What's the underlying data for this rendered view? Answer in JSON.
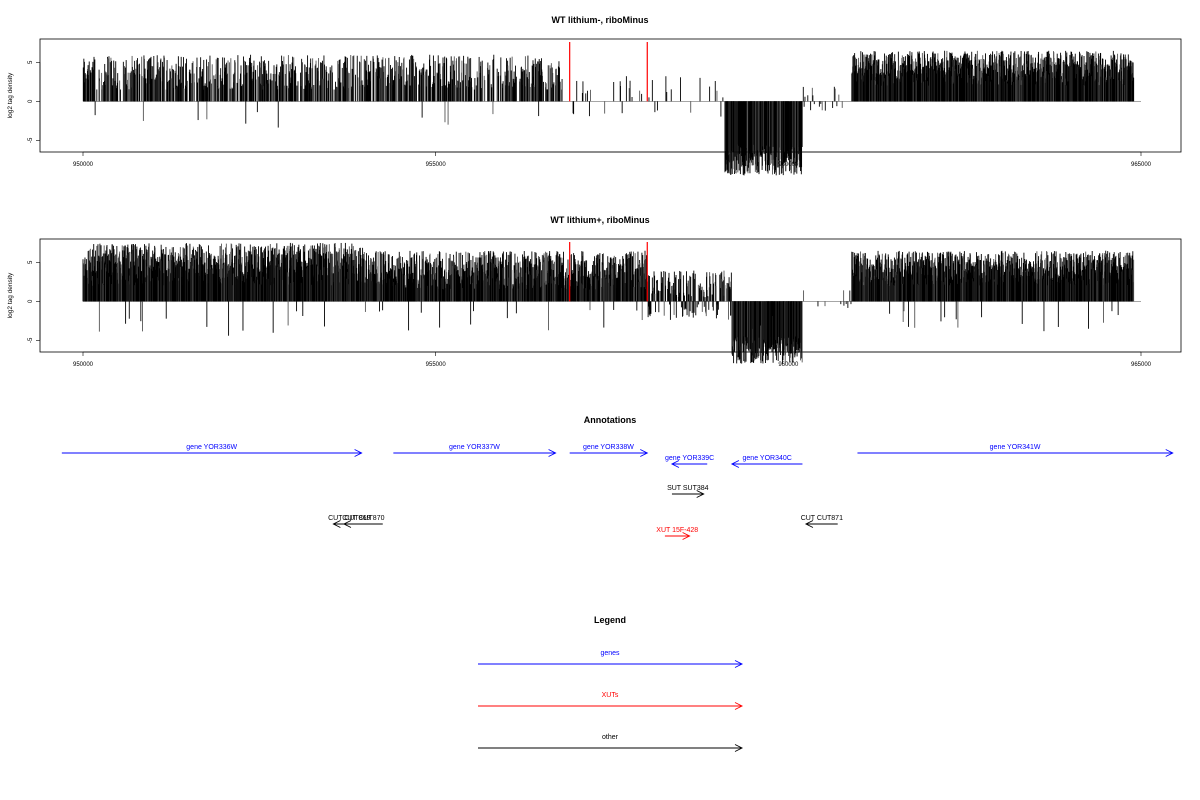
{
  "chart_data": [
    {
      "type": "bar",
      "title": "WT lithium-, riboMinus",
      "ylabel": "log2 tag density",
      "xlim": [
        950000,
        965000
      ],
      "ylim": [
        -6.5,
        8
      ],
      "x_ticks": [
        "950000",
        "955000",
        "960000",
        "965000"
      ],
      "y_ticks": [
        "-5",
        "0",
        "5"
      ],
      "grid": false,
      "markers": [
        {
          "x": 956900,
          "color": "#ff0000"
        },
        {
          "x": 958000,
          "color": "#ff0000"
        }
      ],
      "regions": [
        {
          "from": 950000,
          "to": 956800,
          "min": 1.5,
          "max": 6.0,
          "density": 0.45,
          "neg": 0.02
        },
        {
          "from": 956900,
          "to": 959100,
          "min": 0.5,
          "max": 3.5,
          "density": 0.05,
          "neg": 0.3
        },
        {
          "from": 959100,
          "to": 960200,
          "min": -5.5,
          "max": -1.5,
          "density": 0.9,
          "neg": 1.0
        },
        {
          "from": 960200,
          "to": 960800,
          "min": 0.5,
          "max": 2.0,
          "density": 0.05,
          "neg": 0.5
        },
        {
          "from": 960900,
          "to": 964900,
          "min": 2.0,
          "max": 6.5,
          "density": 1.0,
          "neg": 0.0
        }
      ]
    },
    {
      "type": "bar",
      "title": "WT lithium+, riboMinus",
      "ylabel": "log2 tag density",
      "xlim": [
        950000,
        965000
      ],
      "ylim": [
        -6.5,
        8
      ],
      "x_ticks": [
        "950000",
        "955000",
        "960000",
        "965000"
      ],
      "y_ticks": [
        "-5",
        "0",
        "5"
      ],
      "grid": false,
      "markers": [
        {
          "x": 956900,
          "color": "#ff0000"
        },
        {
          "x": 958000,
          "color": "#ff0000"
        }
      ],
      "regions": [
        {
          "from": 950000,
          "to": 954000,
          "min": 2.0,
          "max": 7.5,
          "density": 1.0,
          "neg": 0.01
        },
        {
          "from": 954000,
          "to": 958000,
          "min": 1.5,
          "max": 6.5,
          "density": 0.85,
          "neg": 0.02
        },
        {
          "from": 958000,
          "to": 959200,
          "min": 0.5,
          "max": 4.0,
          "density": 0.5,
          "neg": 0.35
        },
        {
          "from": 959200,
          "to": 960200,
          "min": -4.5,
          "max": -1.0,
          "density": 0.9,
          "neg": 0.95
        },
        {
          "from": 960200,
          "to": 960900,
          "min": 0.5,
          "max": 1.5,
          "density": 0.05,
          "neg": 0.5
        },
        {
          "from": 960900,
          "to": 964900,
          "min": 2.0,
          "max": 6.5,
          "density": 1.0,
          "neg": 0.01
        }
      ]
    }
  ],
  "annotations": {
    "title": "Annotations",
    "features": [
      {
        "label": "gene YOR336W",
        "from": 949700,
        "to": 953950,
        "row": 0,
        "strand": "+",
        "color": "#0000ff"
      },
      {
        "label": "gene YOR337W",
        "from": 954400,
        "to": 956700,
        "row": 0,
        "strand": "+",
        "color": "#0000ff"
      },
      {
        "label": "gene YOR338W",
        "from": 956900,
        "to": 958000,
        "row": 0,
        "strand": "+",
        "color": "#0000ff"
      },
      {
        "label": "gene YOR339C",
        "from": 958350,
        "to": 958850,
        "row": 1,
        "strand": "-",
        "color": "#0000ff"
      },
      {
        "label": "gene YOR340C",
        "from": 959200,
        "to": 960200,
        "row": 1,
        "strand": "-",
        "color": "#0000ff"
      },
      {
        "label": "gene YOR341W",
        "from": 960980,
        "to": 965450,
        "row": 0,
        "strand": "+",
        "color": "#0000ff"
      },
      {
        "label": "SUT SUT384",
        "from": 958350,
        "to": 958800,
        "row": 2,
        "strand": "+",
        "color": "#000000"
      },
      {
        "label": "CUT CUT869",
        "from": 953550,
        "to": 954000,
        "row": 3,
        "strand": "-",
        "color": "#000000"
      },
      {
        "label": "CUT CUT870",
        "from": 953700,
        "to": 954250,
        "row": 3,
        "strand": "-",
        "color": "#000000"
      },
      {
        "label": "CUT CUT871",
        "from": 960250,
        "to": 960700,
        "row": 3,
        "strand": "-",
        "color": "#000000"
      },
      {
        "label": "XUT 15F-428",
        "from": 958250,
        "to": 958600,
        "row": 4,
        "strand": "+",
        "color": "#ff0000"
      }
    ]
  },
  "legend": {
    "title": "Legend",
    "items": [
      {
        "label": "genes",
        "color": "#0000ff"
      },
      {
        "label": "XUTs",
        "color": "#ff0000"
      },
      {
        "label": "other",
        "color": "#000000"
      }
    ]
  }
}
